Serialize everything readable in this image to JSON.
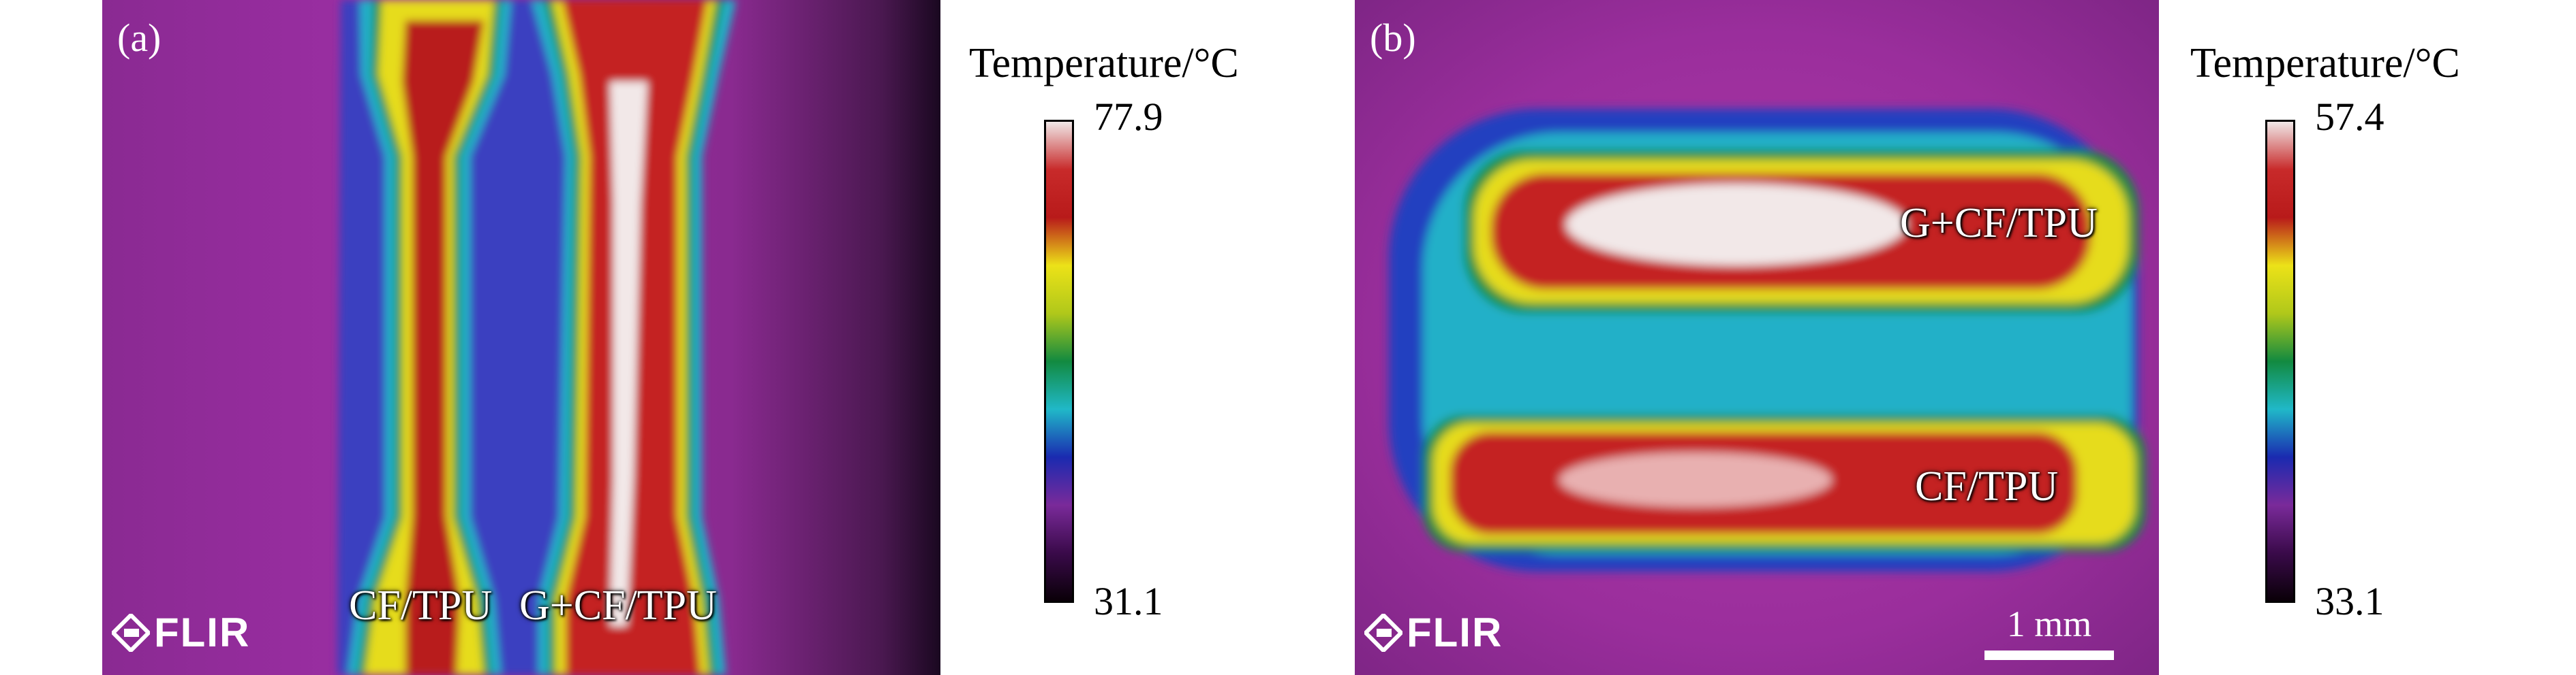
{
  "panels": [
    {
      "label": "(a)",
      "samples": [
        "CF/TPU",
        "G+CF/TPU"
      ],
      "logo": "FLIR",
      "colorbar": {
        "title": "Temperature/°C",
        "max": "77.9",
        "min": "31.1"
      }
    },
    {
      "label": "(b)",
      "samples": [
        "G+CF/TPU",
        "CF/TPU"
      ],
      "logo": "FLIR",
      "scale_bar": "1 mm",
      "colorbar": {
        "title": "Temperature/°C",
        "max": "57.4",
        "min": "33.1"
      }
    }
  ],
  "colormap": [
    "#0a0008",
    "#3a0a4a",
    "#7a2a9a",
    "#1a2ab0",
    "#20b8c8",
    "#128a40",
    "#b0c81a",
    "#ece218",
    "#b81a1a",
    "#c82a2a",
    "#f0e8e8"
  ]
}
